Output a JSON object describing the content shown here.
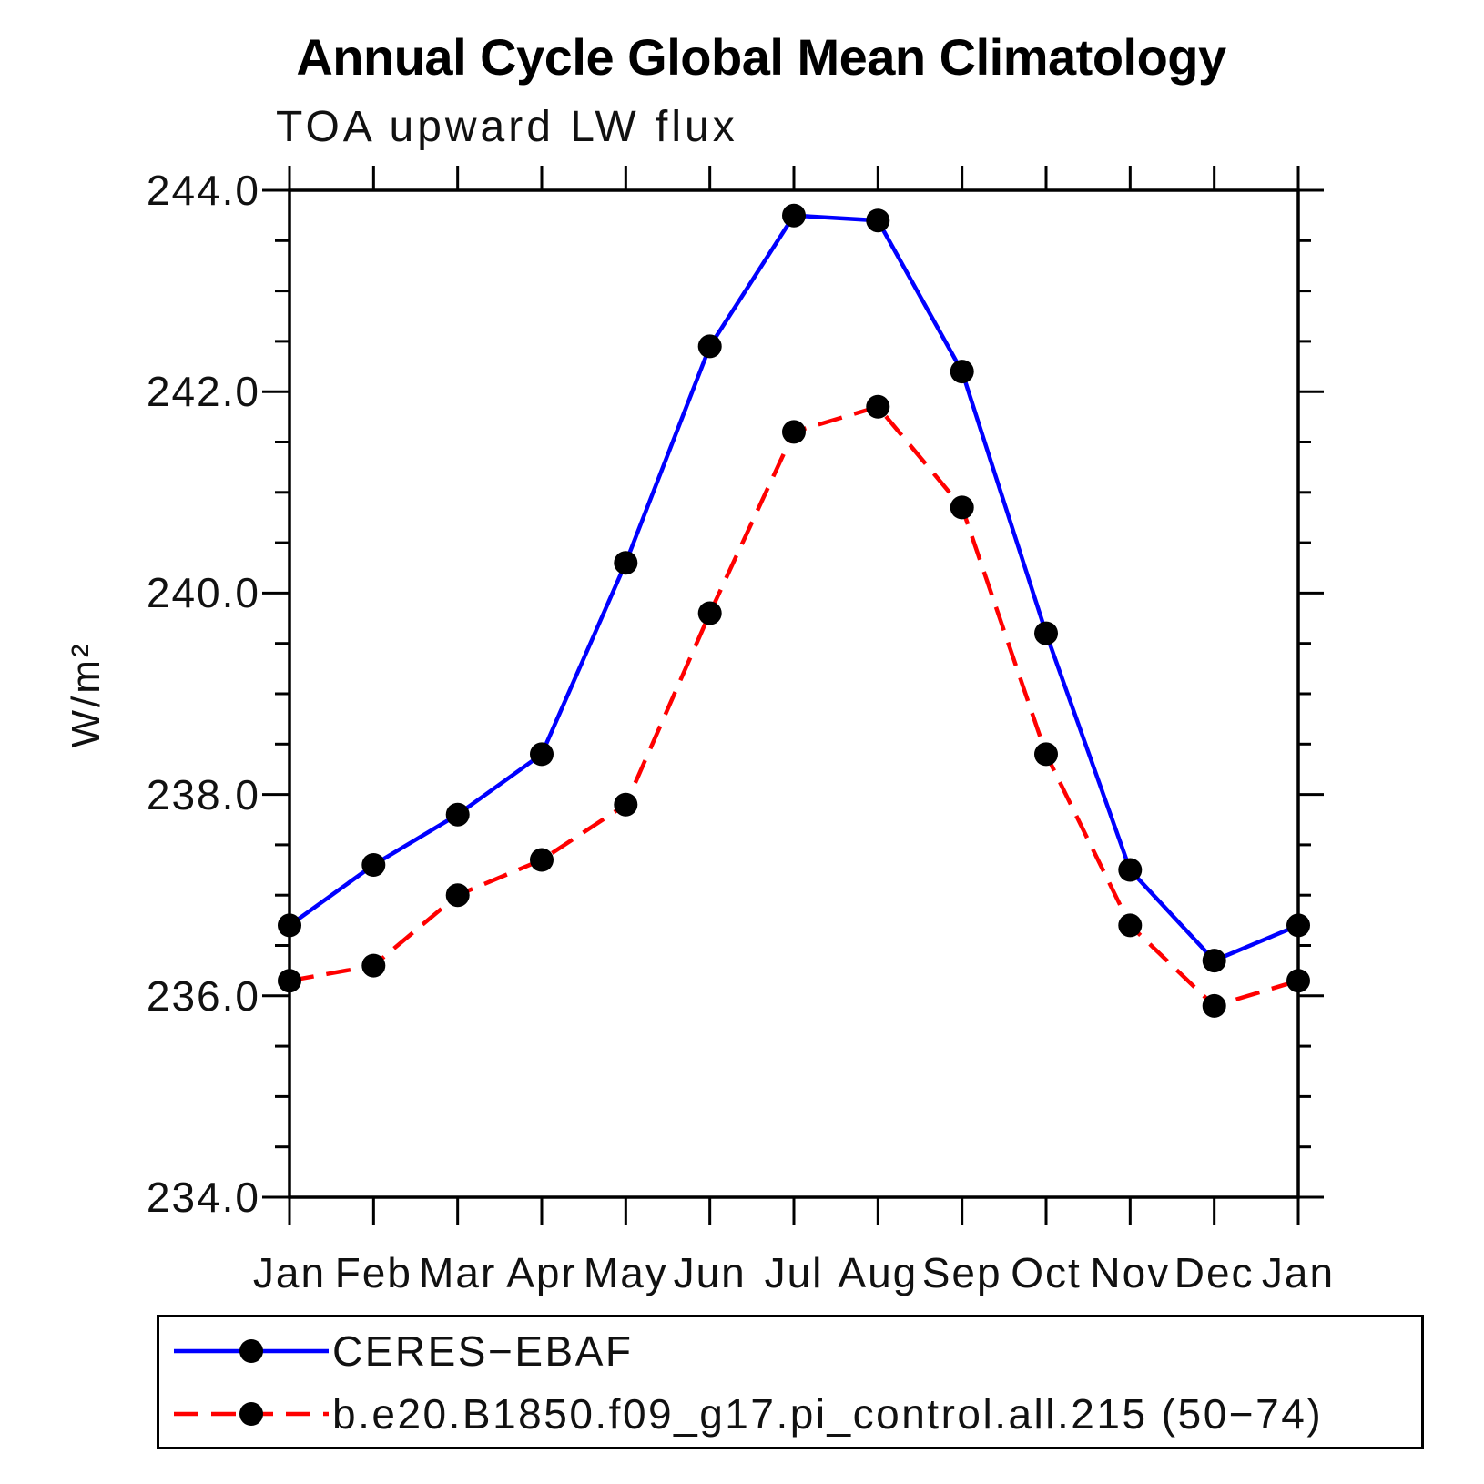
{
  "chart_data": {
    "type": "line",
    "title": "Annual Cycle Global Mean Climatology",
    "subtitle": "TOA upward LW flux",
    "ylabel": "W/m²",
    "xlabel": "",
    "x_categories": [
      "Jan",
      "Feb",
      "Mar",
      "Apr",
      "May",
      "Jun",
      "Jul",
      "Aug",
      "Sep",
      "Oct",
      "Nov",
      "Dec",
      "Jan"
    ],
    "ylim": [
      234.0,
      244.0
    ],
    "y_major_step": 2.0,
    "y_minor_step": 0.5,
    "y_tick_labels": [
      "244.0",
      "242.0",
      "240.0",
      "238.0",
      "236.0",
      "234.0"
    ],
    "grid": false,
    "legend_position": "bottom-left-box",
    "series": [
      {
        "name": "CERES−EBAF",
        "color": "#0000ff",
        "line_style": "solid",
        "marker": "circle",
        "marker_color": "#000000",
        "values": [
          236.7,
          237.3,
          237.8,
          238.4,
          240.3,
          242.45,
          243.75,
          243.7,
          242.2,
          239.6,
          237.25,
          236.35,
          236.7
        ]
      },
      {
        "name": "b.e20.B1850.f09_g17.pi_control.all.215 (50−74)",
        "color": "#ff0000",
        "line_style": "dashed",
        "marker": "circle",
        "marker_color": "#000000",
        "values": [
          236.15,
          236.3,
          237.0,
          237.35,
          237.9,
          239.8,
          241.6,
          241.85,
          240.85,
          238.4,
          236.7,
          235.9,
          236.15
        ]
      }
    ],
    "colors": {
      "axis": "#000000",
      "background": "#ffffff"
    }
  }
}
